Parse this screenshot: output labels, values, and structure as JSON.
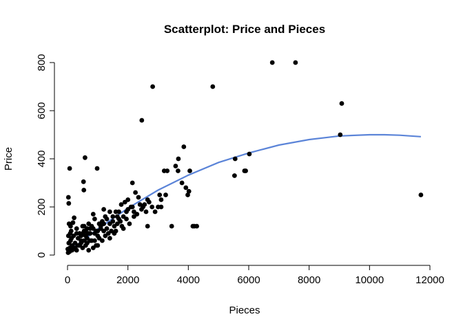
{
  "chart_data": {
    "type": "scatter",
    "title": "Scatterplot: Price and Pieces",
    "xlabel": "Pieces",
    "ylabel": "Price",
    "xlim": [
      0,
      12000
    ],
    "ylim": [
      0,
      800
    ],
    "x_ticks": [
      0,
      2000,
      4000,
      6000,
      8000,
      10000,
      12000
    ],
    "y_ticks": [
      0,
      200,
      400,
      600,
      800
    ],
    "grid": false,
    "colors": {
      "points": "#000000",
      "fit_line": "#5B84D8"
    },
    "fit_line": {
      "x": [
        0,
        1000,
        2000,
        3000,
        4000,
        5000,
        6000,
        7000,
        8000,
        9000,
        10000,
        10500,
        11000,
        11700
      ],
      "y": [
        12,
        108,
        195,
        270,
        332,
        385,
        424,
        457,
        480,
        495,
        500,
        500,
        498,
        492
      ]
    },
    "points": [
      [
        6780,
        800
      ],
      [
        7550,
        800
      ],
      [
        2820,
        700
      ],
      [
        4810,
        700
      ],
      [
        9080,
        630
      ],
      [
        2460,
        560
      ],
      [
        9030,
        500
      ],
      [
        3850,
        450
      ],
      [
        6020,
        420
      ],
      [
        580,
        405
      ],
      [
        5550,
        400
      ],
      [
        3670,
        400
      ],
      [
        5530,
        330
      ],
      [
        5860,
        350
      ],
      [
        5900,
        350
      ],
      [
        3660,
        350
      ],
      [
        3200,
        350
      ],
      [
        3300,
        350
      ],
      [
        4050,
        350
      ],
      [
        980,
        360
      ],
      [
        70,
        360
      ],
      [
        3580,
        370
      ],
      [
        11700,
        250
      ],
      [
        530,
        305
      ],
      [
        2150,
        300
      ],
      [
        3790,
        300
      ],
      [
        3920,
        280
      ],
      [
        540,
        270
      ],
      [
        3980,
        250
      ],
      [
        4020,
        265
      ],
      [
        30,
        240
      ],
      [
        2650,
        230
      ],
      [
        3050,
        250
      ],
      [
        3250,
        250
      ],
      [
        2250,
        260
      ],
      [
        2000,
        230
      ],
      [
        40,
        215
      ],
      [
        1780,
        210
      ],
      [
        2400,
        210
      ],
      [
        3100,
        200
      ],
      [
        3000,
        200
      ],
      [
        3450,
        120
      ],
      [
        4200,
        120
      ],
      [
        4150,
        120
      ],
      [
        4280,
        120
      ],
      [
        2650,
        120
      ],
      [
        1800,
        120
      ],
      [
        2100,
        200
      ],
      [
        1950,
        180
      ],
      [
        1650,
        160
      ],
      [
        1500,
        140
      ],
      [
        1400,
        180
      ],
      [
        1300,
        150
      ],
      [
        1200,
        130
      ],
      [
        1100,
        110
      ],
      [
        1000,
        100
      ],
      [
        900,
        150
      ],
      [
        850,
        170
      ],
      [
        800,
        120
      ],
      [
        750,
        90
      ],
      [
        700,
        130
      ],
      [
        650,
        110
      ],
      [
        600,
        80
      ],
      [
        550,
        100
      ],
      [
        500,
        120
      ],
      [
        450,
        60
      ],
      [
        400,
        90
      ],
      [
        350,
        70
      ],
      [
        300,
        110
      ],
      [
        250,
        50
      ],
      [
        200,
        80
      ],
      [
        150,
        40
      ],
      [
        100,
        60
      ],
      [
        80,
        30
      ],
      [
        60,
        20
      ],
      [
        40,
        50
      ],
      [
        20,
        10
      ],
      [
        10,
        25
      ],
      [
        180,
        135
      ],
      [
        220,
        155
      ],
      [
        120,
        100
      ],
      [
        90,
        90
      ],
      [
        50,
        130
      ],
      [
        1250,
        80
      ],
      [
        1150,
        60
      ],
      [
        1350,
        90
      ],
      [
        1450,
        100
      ],
      [
        1550,
        120
      ],
      [
        1700,
        150
      ],
      [
        2200,
        180
      ],
      [
        2300,
        170
      ],
      [
        1600,
        100
      ],
      [
        950,
        40
      ],
      [
        850,
        30
      ],
      [
        700,
        20
      ],
      [
        500,
        30
      ],
      [
        300,
        20
      ],
      [
        400,
        40
      ],
      [
        650,
        50
      ],
      [
        1050,
        70
      ],
      [
        1200,
        190
      ],
      [
        1900,
        220
      ],
      [
        2500,
        200
      ],
      [
        2700,
        220
      ],
      [
        2800,
        200
      ],
      [
        1000,
        40
      ],
      [
        1100,
        120
      ],
      [
        600,
        40
      ],
      [
        750,
        60
      ],
      [
        150,
        20
      ],
      [
        250,
        30
      ],
      [
        350,
        40
      ],
      [
        450,
        50
      ],
      [
        550,
        60
      ],
      [
        650,
        70
      ],
      [
        900,
        90
      ],
      [
        1000,
        80
      ],
      [
        1300,
        110
      ],
      [
        1400,
        130
      ],
      [
        100,
        120
      ],
      [
        300,
        90
      ],
      [
        700,
        90
      ],
      [
        800,
        60
      ],
      [
        950,
        100
      ],
      [
        1150,
        140
      ],
      [
        1250,
        160
      ],
      [
        1700,
        180
      ],
      [
        1750,
        140
      ],
      [
        2050,
        130
      ],
      [
        2150,
        200
      ],
      [
        2350,
        240
      ],
      [
        2600,
        180
      ],
      [
        200,
        30
      ],
      [
        450,
        80
      ],
      [
        600,
        100
      ],
      [
        850,
        110
      ],
      [
        1050,
        130
      ],
      [
        1500,
        160
      ],
      [
        1600,
        180
      ],
      [
        1850,
        160
      ],
      [
        2000,
        190
      ],
      [
        130,
        70
      ],
      [
        30,
        80
      ],
      [
        70,
        15
      ],
      [
        500,
        90
      ],
      [
        1200,
        100
      ],
      [
        900,
        60
      ],
      [
        750,
        110
      ],
      [
        650,
        90
      ],
      [
        550,
        120
      ],
      [
        1400,
        70
      ],
      [
        1550,
        90
      ],
      [
        1650,
        130
      ],
      [
        2200,
        160
      ],
      [
        2450,
        190
      ],
      [
        2550,
        210
      ],
      [
        2900,
        180
      ],
      [
        3100,
        230
      ],
      [
        1850,
        110
      ],
      [
        1950,
        150
      ]
    ]
  }
}
